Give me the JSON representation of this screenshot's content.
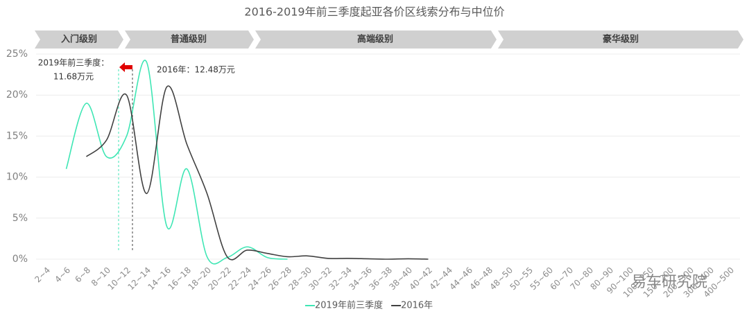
{
  "chart_data": {
    "type": "line",
    "title": "2016-2019年前三季度起亚各价区线索分布与中位价",
    "price_segments": [
      "入门级别",
      "普通级别",
      "高端级别",
      "豪华级别"
    ],
    "annotations": [
      "2019年前三季度：",
      "11.68万元",
      "2016年：12.48万元"
    ],
    "watermark": "易车研究院",
    "categories": [
      "2~4",
      "4~6",
      "6~8",
      "8~10",
      "10~12",
      "12~14",
      "14~16",
      "16~18",
      "18~20",
      "20~22",
      "22~24",
      "24~26",
      "26~28",
      "28~30",
      "30~32",
      "32~34",
      "34~36",
      "36~38",
      "38~40",
      "40~42",
      "42~44",
      "44~46",
      "46~48",
      "48~50",
      "50~55",
      "55~60",
      "60~70",
      "70~80",
      "80~90",
      "90~100",
      "100~150",
      "150~200",
      "200~300",
      "300~400",
      "400~500"
    ],
    "series": [
      {
        "name": "2019年前三季度",
        "color": "#3ee6b4",
        "values": [
          null,
          11,
          19,
          12.5,
          15,
          24,
          4,
          11,
          0.3,
          0.2,
          1.5,
          0.2,
          0,
          null,
          null,
          null,
          null,
          null,
          null,
          null,
          null,
          null,
          null,
          null,
          null,
          null,
          null,
          null,
          null,
          null,
          null,
          null,
          null,
          null,
          null
        ]
      },
      {
        "name": "2016年",
        "color": "#404040",
        "values": [
          null,
          null,
          12.5,
          14.5,
          20,
          8,
          21,
          14,
          8,
          0.3,
          1.1,
          0.7,
          0.3,
          0.4,
          0.1,
          0.1,
          0.05,
          0,
          0.05,
          0,
          null,
          null,
          null,
          null,
          null,
          null,
          null,
          null,
          null,
          null,
          null,
          null,
          null,
          null,
          null
        ]
      }
    ],
    "ylim": [
      0,
      25
    ],
    "yticks": [
      {
        "value": 0,
        "label": "0%"
      },
      {
        "value": 5,
        "label": "5%"
      },
      {
        "value": 10,
        "label": "10%"
      },
      {
        "value": 15,
        "label": "15%"
      },
      {
        "value": 20,
        "label": "20%"
      },
      {
        "value": 25,
        "label": "25%"
      }
    ],
    "grid": true
  }
}
